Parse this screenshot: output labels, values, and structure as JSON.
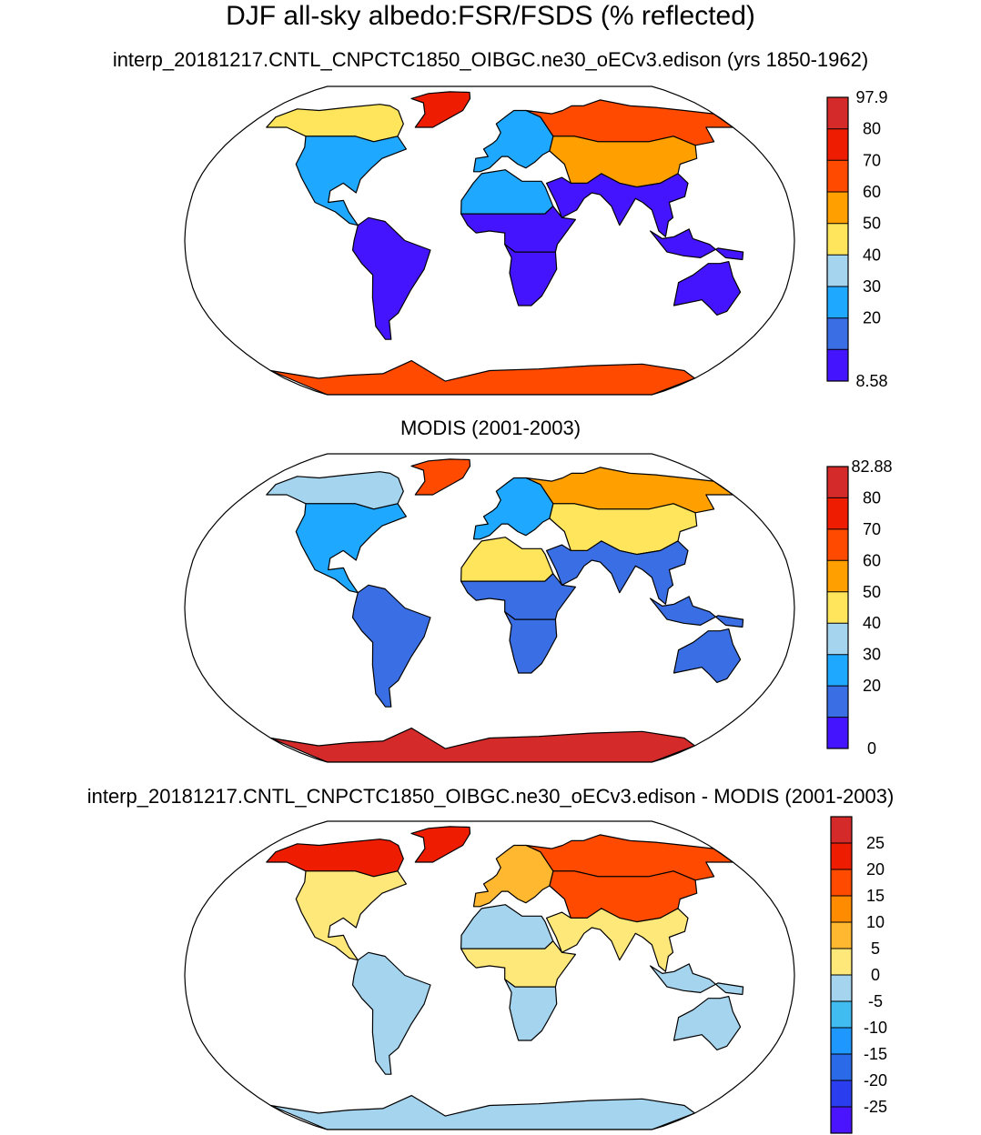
{
  "title": "DJF all-sky albedo:FSR/FSDS (% reflected)",
  "chart_data": [
    {
      "type": "heatmap",
      "subtitle": "interp_20181217.CNTL_CNPCTC1850_OIBGC.ne30_oECv3.edison (yrs 1850-1962)",
      "colorbar_labels": [
        "97.9",
        "80",
        "70",
        "60",
        "50",
        "40",
        "30",
        "20",
        "8.58"
      ],
      "colorbar_colors": [
        "#d42a2a",
        "#ee1c00",
        "#ff4a00",
        "#ffa000",
        "#ffe55c",
        "#a5d4ee",
        "#1ea8ff",
        "#3a6ee4",
        "#4414ff"
      ],
      "value_range": [
        8.58,
        97.9
      ],
      "regions": [
        {
          "name": "Antarctica",
          "value": 75
        },
        {
          "name": "Greenland",
          "value": 85
        },
        {
          "name": "North America high latitudes",
          "value": 58
        },
        {
          "name": "North America mid latitudes",
          "value": 30
        },
        {
          "name": "South America",
          "value": 12
        },
        {
          "name": "Sahara",
          "value": 38
        },
        {
          "name": "Tropical Africa",
          "value": 14
        },
        {
          "name": "Southern Africa",
          "value": 14
        },
        {
          "name": "Europe",
          "value": 30
        },
        {
          "name": "Siberia",
          "value": 72
        },
        {
          "name": "Central Asia",
          "value": 60
        },
        {
          "name": "South Asia",
          "value": 15
        },
        {
          "name": "Maritime Continent",
          "value": 12
        },
        {
          "name": "Australia",
          "value": 12
        }
      ]
    },
    {
      "type": "heatmap",
      "subtitle": "MODIS (2001-2003)",
      "colorbar_labels": [
        "82.88",
        "80",
        "70",
        "60",
        "50",
        "40",
        "30",
        "20",
        "0"
      ],
      "colorbar_colors": [
        "#d42a2a",
        "#ee1c00",
        "#ff4a00",
        "#ffa000",
        "#ffe55c",
        "#a5d4ee",
        "#1ea8ff",
        "#3a6ee4",
        "#4414ff"
      ],
      "value_range": [
        0,
        82.88
      ],
      "regions": [
        {
          "name": "Antarctica",
          "value": 75
        },
        {
          "name": "Greenland",
          "value": 62
        },
        {
          "name": "North America high latitudes",
          "value": 33
        },
        {
          "name": "North America mid latitudes",
          "value": 24
        },
        {
          "name": "South America",
          "value": 12
        },
        {
          "name": "Sahara",
          "value": 38
        },
        {
          "name": "Tropical Africa",
          "value": 13
        },
        {
          "name": "Southern Africa",
          "value": 14
        },
        {
          "name": "Europe",
          "value": 22
        },
        {
          "name": "Siberia",
          "value": 55
        },
        {
          "name": "Central Asia",
          "value": 45
        },
        {
          "name": "South Asia",
          "value": 14
        },
        {
          "name": "Maritime Continent",
          "value": 12
        },
        {
          "name": "Australia",
          "value": 14
        }
      ]
    },
    {
      "type": "heatmap",
      "subtitle": "interp_20181217.CNTL_CNPCTC1850_OIBGC.ne30_oECv3.edison - MODIS (2001-2003)",
      "colorbar_labels": [
        "25",
        "20",
        "15",
        "10",
        "5",
        "0",
        "-5",
        "-10",
        "-15",
        "-20",
        "-25"
      ],
      "colorbar_colors": [
        "#d42a2a",
        "#ee1c00",
        "#ff4a00",
        "#ff8c00",
        "#ffb830",
        "#ffe87a",
        "#a5d4ee",
        "#40bcf0",
        "#1e98ff",
        "#2a6ae8",
        "#2a3ef0",
        "#4a14ff"
      ],
      "value_range": [
        -30,
        30
      ],
      "regions": [
        {
          "name": "Antarctica",
          "value": -2
        },
        {
          "name": "Greenland",
          "value": 24
        },
        {
          "name": "North America high latitudes",
          "value": 22
        },
        {
          "name": "North America mid latitudes",
          "value": 3
        },
        {
          "name": "South America",
          "value": -2
        },
        {
          "name": "Sahara",
          "value": -2
        },
        {
          "name": "Tropical Africa",
          "value": 2
        },
        {
          "name": "Southern Africa",
          "value": -1
        },
        {
          "name": "Europe",
          "value": 7
        },
        {
          "name": "Siberia",
          "value": 18
        },
        {
          "name": "Central Asia",
          "value": 16
        },
        {
          "name": "South Asia",
          "value": 2
        },
        {
          "name": "Maritime Continent",
          "value": -1
        },
        {
          "name": "Australia",
          "value": -2
        }
      ]
    }
  ]
}
